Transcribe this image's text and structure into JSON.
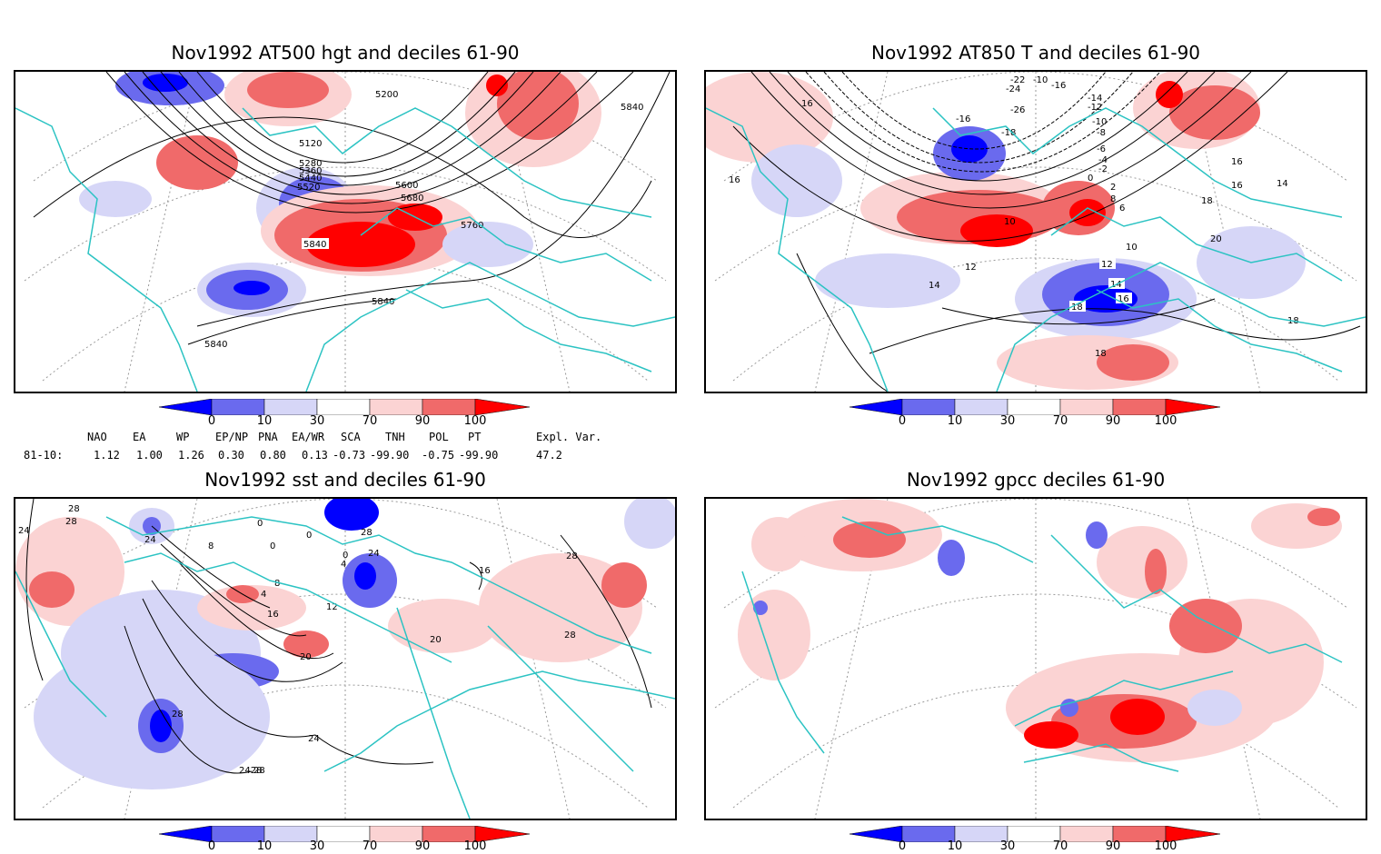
{
  "panels": {
    "hgt": {
      "title": "Nov1992 AT500 hgt and deciles 61-90",
      "contour_labels": [
        "5200",
        "5120",
        "5280",
        "5360",
        "5440",
        "5520",
        "5600",
        "5680",
        "5760",
        "5840",
        "5840",
        "5840",
        "5840"
      ]
    },
    "t850": {
      "title": "Nov1992 AT850 T and deciles 61-90",
      "contour_labels": [
        "-22",
        "-24",
        "-26",
        "-16",
        "-18",
        "-10",
        "-16",
        "-14",
        "-12",
        "-10",
        "-8",
        "-6",
        "-4",
        "-2",
        "0",
        "2",
        "8",
        "6",
        "10",
        "10",
        "12",
        "14",
        "16",
        "16",
        "18",
        "12",
        "14",
        "16",
        "18",
        "18",
        "20",
        "18",
        "16",
        "16",
        "14"
      ]
    },
    "sst": {
      "title": "Nov1992 sst and deciles 61-90",
      "contour_labels": [
        "24",
        "28",
        "24",
        "8",
        "0",
        "0",
        "0",
        "4",
        "8",
        "12",
        "16",
        "20",
        "24",
        "28",
        "28",
        "24",
        "28",
        "20",
        "28",
        "16",
        "4",
        "0",
        "28",
        "2428",
        "28"
      ]
    },
    "gpcc": {
      "title": "Nov1992 gpcc deciles 61-90",
      "contour_labels": []
    }
  },
  "colorbar": {
    "tick_labels": [
      "0",
      "10",
      "30",
      "70",
      "90",
      "100"
    ],
    "colors": [
      "#0000ff",
      "#6a6aee",
      "#d6d6f7",
      "#ffffff",
      "#fbd3d3",
      "#f06a6a",
      "#ff0000"
    ]
  },
  "indices": {
    "headers": [
      "NAO",
      "EA",
      "WP",
      "EP/NP",
      "PNA",
      "EA/WR",
      "SCA",
      "TNH",
      "POL",
      "PT",
      "Expl. Var."
    ],
    "row_label": "81-10:",
    "values": [
      "1.12",
      "1.00",
      "1.26",
      "0.30",
      "0.80",
      "0.13",
      "-0.73",
      "-99.90",
      "-0.75",
      "-99.90",
      "47.2"
    ]
  },
  "map_colors": {
    "coast": "#2cc3c3",
    "contour": "#000000",
    "grid": "#9a9a9a"
  }
}
